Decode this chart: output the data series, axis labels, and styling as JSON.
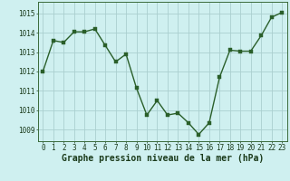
{
  "x": [
    0,
    1,
    2,
    3,
    4,
    5,
    6,
    7,
    8,
    9,
    10,
    11,
    12,
    13,
    14,
    15,
    16,
    17,
    18,
    19,
    20,
    21,
    22,
    23
  ],
  "y": [
    1012.0,
    1013.6,
    1013.5,
    1014.05,
    1014.05,
    1014.2,
    1013.35,
    1012.5,
    1012.9,
    1011.15,
    1009.75,
    1010.5,
    1009.75,
    1009.85,
    1009.35,
    1008.75,
    1009.35,
    1011.7,
    1013.1,
    1013.05,
    1013.05,
    1013.85,
    1014.8,
    1015.05
  ],
  "line_color": "#2a5f2a",
  "marker_color": "#2a5f2a",
  "bg_color": "#cff0f0",
  "grid_color": "#aacfcf",
  "xlabel": "Graphe pression niveau de la mer (hPa)",
  "xlabel_color": "#1a3a1a",
  "ylim": [
    1008.4,
    1015.6
  ],
  "yticks": [
    1009,
    1010,
    1011,
    1012,
    1013,
    1014,
    1015
  ],
  "xticks": [
    0,
    1,
    2,
    3,
    4,
    5,
    6,
    7,
    8,
    9,
    10,
    11,
    12,
    13,
    14,
    15,
    16,
    17,
    18,
    19,
    20,
    21,
    22,
    23
  ],
  "tick_label_size": 5.5,
  "xlabel_fontsize": 7.0,
  "line_width": 1.0,
  "marker_size": 2.5
}
